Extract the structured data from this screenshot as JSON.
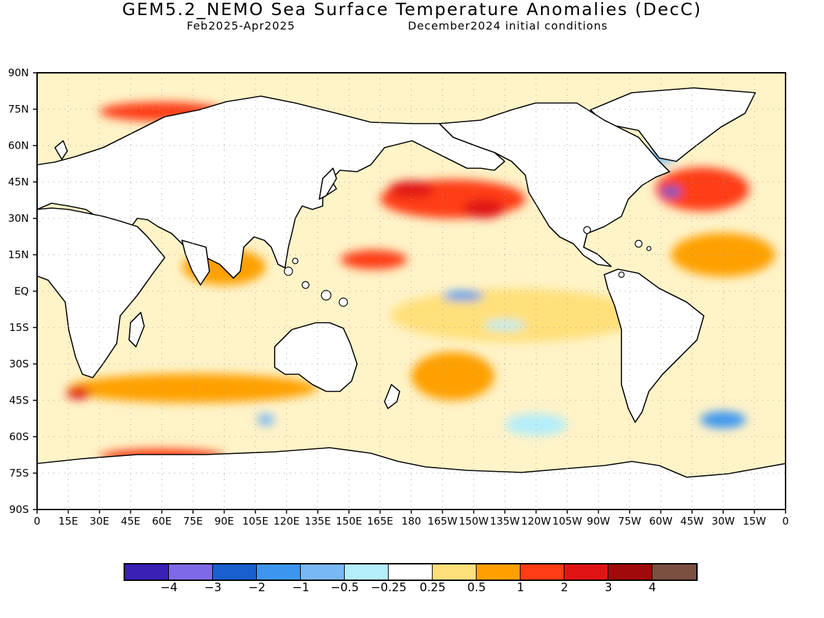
{
  "header": {
    "title": "GEM5.2_NEMO Sea Surface Temperature Anomalies (DecC)",
    "period": "Feb2025-Apr2025",
    "init": "December2024 initial conditions"
  },
  "map": {
    "lat_labels": [
      "90N",
      "75N",
      "60N",
      "45N",
      "30N",
      "15N",
      "EQ",
      "15S",
      "30S",
      "45S",
      "60S",
      "75S",
      "90S"
    ],
    "lon_labels": [
      "0",
      "15E",
      "30E",
      "45E",
      "60E",
      "75E",
      "90E",
      "105E",
      "120E",
      "135E",
      "150E",
      "165E",
      "180",
      "165W",
      "150W",
      "135W",
      "120W",
      "105W",
      "90W",
      "75W",
      "60W",
      "45W",
      "30W",
      "15W",
      "0"
    ],
    "lon_range": [
      0,
      360
    ],
    "lat_range": [
      -90,
      90
    ],
    "grid": "dotted"
  },
  "legend": {
    "colors": [
      "#3a20b4",
      "#7e6ae8",
      "#1a5fd0",
      "#3c96f0",
      "#78b8f4",
      "#b4eefa",
      "#ffffff",
      "#ffe07a",
      "#ffa000",
      "#ff3c14",
      "#e01414",
      "#a00a0a",
      "#7a5040"
    ],
    "labels": [
      "-4",
      "-3",
      "-2",
      "-1",
      "-0.5",
      "-0.25",
      "0.25",
      "0.5",
      "1",
      "2",
      "3",
      "4"
    ]
  },
  "chart_data": {
    "type": "heatmap",
    "title": "GEM5.2_NEMO Sea Surface Temperature Anomalies (DecC)",
    "subtitle": "Feb2025-Apr2025    December2024 initial conditions",
    "xlabel": "",
    "ylabel": "",
    "xlim": [
      0,
      360
    ],
    "ylim": [
      -90,
      90
    ],
    "levels": [
      -4,
      -3,
      -2,
      -1,
      -0.5,
      -0.25,
      0.25,
      0.5,
      1,
      2,
      3,
      4
    ],
    "regions": [
      {
        "lon": 200,
        "lat": 38,
        "w": 70,
        "h": 16,
        "value": 1.5
      },
      {
        "lon": 180,
        "lat": 42,
        "w": 22,
        "h": 7,
        "value": 2.5
      },
      {
        "lon": 215,
        "lat": 34,
        "w": 20,
        "h": 8,
        "value": 2.2
      },
      {
        "lon": 162,
        "lat": 13,
        "w": 32,
        "h": 8,
        "value": 1.3
      },
      {
        "lon": 230,
        "lat": -10,
        "w": 120,
        "h": 22,
        "value": 0.4
      },
      {
        "lon": 205,
        "lat": -2,
        "w": 20,
        "h": 4,
        "value": -1.2
      },
      {
        "lon": 225,
        "lat": -14,
        "w": 20,
        "h": 4,
        "value": -0.4
      },
      {
        "lon": 320,
        "lat": 42,
        "w": 45,
        "h": 18,
        "value": 1.6
      },
      {
        "lon": 305,
        "lat": 41,
        "w": 10,
        "h": 4,
        "value": -2.5
      },
      {
        "lon": 300,
        "lat": 56,
        "w": 14,
        "h": 7,
        "value": -0.8
      },
      {
        "lon": 330,
        "lat": 15,
        "w": 50,
        "h": 18,
        "value": 0.9
      },
      {
        "lon": 60,
        "lat": 74,
        "w": 60,
        "h": 8,
        "value": 1.8
      },
      {
        "lon": 90,
        "lat": 10,
        "w": 40,
        "h": 15,
        "value": 0.6
      },
      {
        "lon": 75,
        "lat": -40,
        "w": 120,
        "h": 12,
        "value": 0.9
      },
      {
        "lon": 20,
        "lat": -42,
        "w": 12,
        "h": 5,
        "value": 2.2
      },
      {
        "lon": 60,
        "lat": -68,
        "w": 60,
        "h": 6,
        "value": 1.8
      },
      {
        "lon": 110,
        "lat": -53,
        "w": 8,
        "h": 5,
        "value": -1.0
      },
      {
        "lon": 330,
        "lat": -53,
        "w": 22,
        "h": 7,
        "value": -1.2
      },
      {
        "lon": 240,
        "lat": -55,
        "w": 30,
        "h": 9,
        "value": -0.5
      },
      {
        "lon": 200,
        "lat": -35,
        "w": 40,
        "h": 20,
        "value": 0.8
      }
    ]
  }
}
